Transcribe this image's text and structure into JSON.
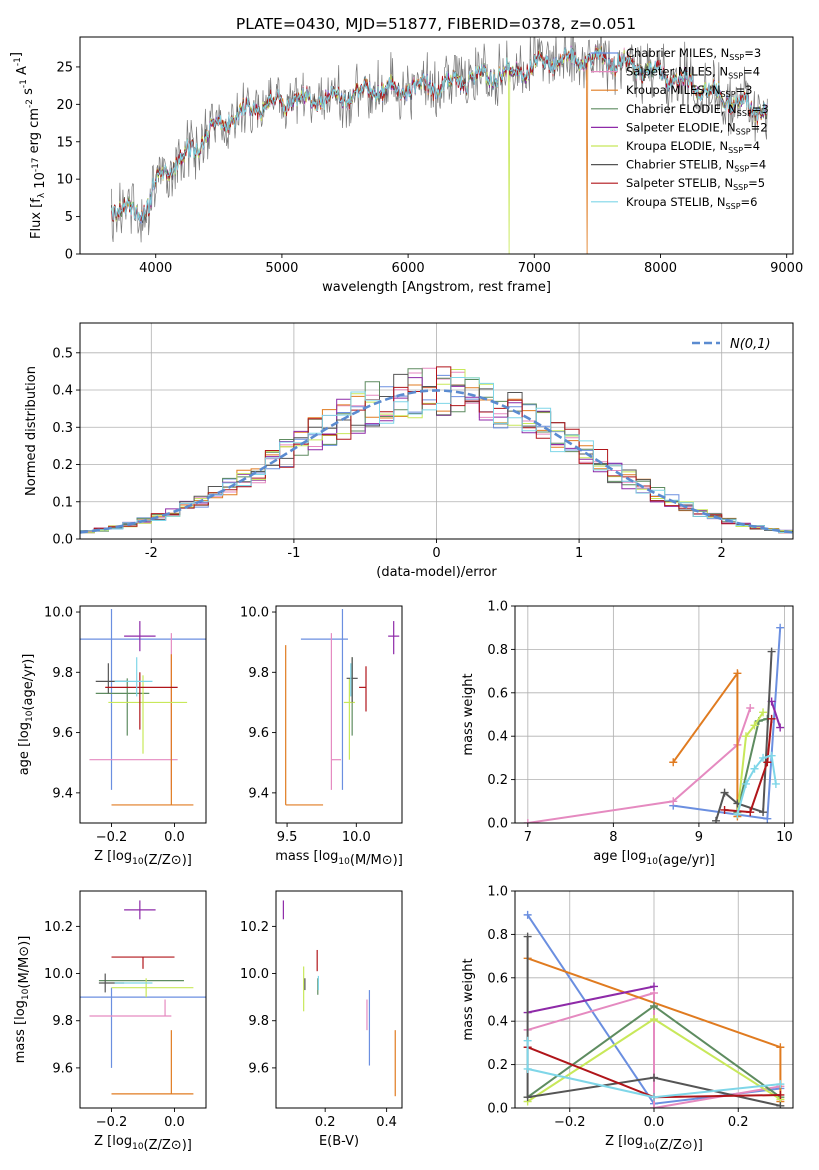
{
  "title": "PLATE=0430, MJD=51877, FIBERID=0378, z=0.051",
  "colors": {
    "Chabrier MILES": "#6b8fe0",
    "Salpeter MILES": "#e58ac0",
    "Kroupa MILES": "#e07b20",
    "Chabrier ELODIE": "#5e8c60",
    "Salpeter ELODIE": "#8e2aa8",
    "Kroupa ELODIE": "#c8e85a",
    "Chabrier STELIB": "#555555",
    "Salpeter STELIB": "#b0151a",
    "Kroupa STELIB": "#7fd6e8"
  },
  "model_order": [
    "Chabrier MILES",
    "Salpeter MILES",
    "Kroupa MILES",
    "Chabrier ELODIE",
    "Salpeter ELODIE",
    "Kroupa ELODIE",
    "Chabrier STELIB",
    "Salpeter STELIB",
    "Kroupa STELIB"
  ],
  "chart_data": [
    {
      "id": "spectrum",
      "type": "line",
      "xlabel": "wavelength [Angstrom, rest frame]",
      "ylabel": "Flux [f_λ 10^-17 erg cm^-2 s^-1 A^-1]",
      "xlim": [
        3400,
        9050
      ],
      "ylim": [
        0,
        29
      ],
      "xticks": [
        4000,
        5000,
        6000,
        7000,
        8000,
        9000
      ],
      "yticks": [
        0,
        5,
        10,
        15,
        20,
        25
      ],
      "grid": false,
      "legend": "right",
      "legend_entries": [
        {
          "base": "Chabrier MILES, N",
          "n": "3"
        },
        {
          "base": "Salpeter MILES, N",
          "n": "4"
        },
        {
          "base": "Kroupa MILES, N",
          "n": "3"
        },
        {
          "base": "Chabrier ELODIE, N",
          "n": "3"
        },
        {
          "base": "Salpeter ELODIE, N",
          "n": "2"
        },
        {
          "base": "Kroupa ELODIE, N",
          "n": "4"
        },
        {
          "base": "Chabrier STELIB, N",
          "n": "4"
        },
        {
          "base": "Salpeter STELIB, N",
          "n": "5"
        },
        {
          "base": "Kroupa STELIB, N",
          "n": "6"
        }
      ],
      "legend_sub": "SSP",
      "continuum": {
        "x": [
          3650,
          3800,
          3950,
          4000,
          4100,
          4200,
          4300,
          4400,
          4500,
          4700,
          4900,
          5100,
          5300,
          5500,
          5700,
          5900,
          6100,
          6300,
          6500,
          6700,
          6900,
          7100,
          7300,
          7500,
          7700,
          7900,
          8100,
          8300,
          8500,
          8700,
          8850
        ],
        "y": [
          6.5,
          5.5,
          6.5,
          9.5,
          11.5,
          12.5,
          14.0,
          16.0,
          17.5,
          19.0,
          20.0,
          20.5,
          20.5,
          21.0,
          22.0,
          22.0,
          22.5,
          22.5,
          23.5,
          24.0,
          24.5,
          25.5,
          26.0,
          26.0,
          25.5,
          24.5,
          23.5,
          22.5,
          21.0,
          19.5,
          19.0
        ]
      },
      "gaps": [
        [
          6800,
          0
        ],
        [
          7420,
          0
        ],
        [
          3900,
          0.5
        ]
      ]
    },
    {
      "id": "residual-hist",
      "type": "area",
      "xlabel": "(data-model)/error",
      "ylabel": "Normed distribution",
      "xlim": [
        -2.5,
        2.5
      ],
      "ylim": [
        0,
        0.58
      ],
      "xticks": [
        -2,
        -1,
        0,
        1,
        2
      ],
      "yticks": [
        0.0,
        0.1,
        0.2,
        0.3,
        0.4,
        0.5
      ],
      "grid": true,
      "legend": "top-right",
      "reference_label": "N(0,1)",
      "bin_width": 0.1
    },
    {
      "id": "age-vs-Z",
      "type": "scatter",
      "xlabel": "Z [log10(Z/Z⊙)]",
      "ylabel": "age  [log10(age/yr)]",
      "xlim": [
        -0.3,
        0.1
      ],
      "ylim": [
        9.3,
        10.02
      ],
      "xticks": [
        -0.2,
        0.0
      ],
      "yticks": [
        9.4,
        9.6,
        9.8,
        10.0
      ],
      "points": [
        {
          "model": "Chabrier MILES",
          "x": -0.2,
          "y": 9.91,
          "xerr": [
            0.1,
            0.3
          ],
          "yerr": [
            0.5,
            0.1
          ]
        },
        {
          "model": "Salpeter MILES",
          "x": -0.01,
          "y": 9.51,
          "xerr": [
            0.26,
            0.02
          ],
          "yerr": [
            0.1,
            0.42
          ]
        },
        {
          "model": "Kroupa MILES",
          "x": -0.01,
          "y": 9.36,
          "xerr": [
            0.19,
            0.07
          ],
          "yerr": [
            0.0,
            0.5
          ]
        },
        {
          "model": "Chabrier ELODIE",
          "x": -0.15,
          "y": 9.73,
          "xerr": [
            0.1,
            0.07
          ],
          "yerr": [
            0.14,
            0.05
          ]
        },
        {
          "model": "Salpeter ELODIE",
          "x": -0.11,
          "y": 9.92,
          "xerr": [
            0.05,
            0.05
          ],
          "yerr": [
            0.05,
            0.05
          ]
        },
        {
          "model": "Kroupa ELODIE",
          "x": -0.1,
          "y": 9.7,
          "xerr": [
            0.11,
            0.14
          ],
          "yerr": [
            0.17,
            0.09
          ]
        },
        {
          "model": "Chabrier STELIB",
          "x": -0.21,
          "y": 9.77,
          "xerr": [
            0.04,
            0.06
          ],
          "yerr": [
            0.04,
            0.06
          ]
        },
        {
          "model": "Salpeter STELIB",
          "x": -0.11,
          "y": 9.75,
          "xerr": [
            0.11,
            0.12
          ],
          "yerr": [
            0.14,
            0.05
          ]
        },
        {
          "model": "Kroupa STELIB",
          "x": -0.12,
          "y": 9.77,
          "xerr": [
            0.07,
            0.05
          ],
          "yerr": [
            0.05,
            0.08
          ]
        }
      ]
    },
    {
      "id": "age-vs-mass",
      "type": "scatter",
      "xlabel": "mass [log10(M/M⊙)]",
      "ylabel": "",
      "xlim": [
        9.42,
        10.33
      ],
      "ylim": [
        9.3,
        10.02
      ],
      "xticks": [
        9.5,
        10.0
      ],
      "yticks": [
        9.4,
        9.6,
        9.8,
        10.0
      ],
      "points": [
        {
          "model": "Chabrier MILES",
          "x": 9.9,
          "y": 9.91,
          "xerr": [
            0.3,
            0.04
          ],
          "yerr": [
            0.5,
            0.1
          ]
        },
        {
          "model": "Salpeter MILES",
          "x": 9.82,
          "y": 9.51,
          "xerr": [
            0.0,
            0.07
          ],
          "yerr": [
            0.1,
            0.42
          ]
        },
        {
          "model": "Kroupa MILES",
          "x": 9.49,
          "y": 9.36,
          "xerr": [
            0.0,
            0.27
          ],
          "yerr": [
            0.0,
            0.53
          ]
        },
        {
          "model": "Chabrier ELODIE",
          "x": 9.97,
          "y": 9.73,
          "xerr": [
            0.0,
            0.0
          ],
          "yerr": [
            0.14,
            0.12
          ]
        },
        {
          "model": "Salpeter ELODIE",
          "x": 10.27,
          "y": 9.92,
          "xerr": [
            0.04,
            0.04
          ],
          "yerr": [
            0.06,
            0.05
          ]
        },
        {
          "model": "Kroupa ELODIE",
          "x": 9.95,
          "y": 9.7,
          "xerr": [
            0.04,
            0.04
          ],
          "yerr": [
            0.19,
            0.08
          ]
        },
        {
          "model": "Chabrier STELIB",
          "x": 9.97,
          "y": 9.78,
          "xerr": [
            0.04,
            0.04
          ],
          "yerr": [
            0.08,
            0.07
          ]
        },
        {
          "model": "Salpeter STELIB",
          "x": 10.07,
          "y": 9.75,
          "xerr": [
            0.05,
            0.0
          ],
          "yerr": [
            0.08,
            0.07
          ]
        },
        {
          "model": "Kroupa STELIB",
          "x": 9.96,
          "y": 9.78,
          "xerr": [
            0.0,
            0.0
          ],
          "yerr": [
            0.06,
            0.05
          ]
        }
      ]
    },
    {
      "id": "massweight-vs-age",
      "type": "line",
      "xlabel": "age  [log10(age/yr)]",
      "ylabel": "mass weight",
      "xlim": [
        6.85,
        10.1
      ],
      "ylim": [
        0,
        1.0
      ],
      "xticks": [
        7,
        8,
        9,
        10
      ],
      "yticks": [
        0.0,
        0.2,
        0.4,
        0.6,
        0.8,
        1.0
      ],
      "grid": true,
      "series": [
        {
          "model": "Chabrier MILES",
          "x": [
            8.7,
            9.8,
            9.95
          ],
          "y": [
            0.08,
            0.02,
            0.9
          ]
        },
        {
          "model": "Salpeter MILES",
          "x": [
            7.0,
            8.7,
            9.45,
            9.6
          ],
          "y": [
            0.0,
            0.1,
            0.36,
            0.53
          ]
        },
        {
          "model": "Kroupa MILES",
          "x": [
            8.7,
            9.45,
            9.45
          ],
          "y": [
            0.28,
            0.69,
            0.03
          ]
        },
        {
          "model": "Chabrier ELODIE",
          "x": [
            9.45,
            9.7,
            9.8
          ],
          "y": [
            0.05,
            0.47,
            0.48
          ]
        },
        {
          "model": "Salpeter ELODIE",
          "x": [
            9.85,
            9.95
          ],
          "y": [
            0.56,
            0.44
          ]
        },
        {
          "model": "Kroupa ELODIE",
          "x": [
            9.45,
            9.55,
            9.65,
            9.75
          ],
          "y": [
            0.04,
            0.4,
            0.45,
            0.51
          ]
        },
        {
          "model": "Chabrier STELIB",
          "x": [
            9.2,
            9.3,
            9.45,
            9.75,
            9.85
          ],
          "y": [
            0.01,
            0.14,
            0.09,
            0.05,
            0.79
          ]
        },
        {
          "model": "Salpeter STELIB",
          "x": [
            9.3,
            9.6,
            9.8,
            9.85
          ],
          "y": [
            0.06,
            0.05,
            0.28,
            0.48
          ]
        },
        {
          "model": "Kroupa STELIB",
          "x": [
            9.45,
            9.55,
            9.65,
            9.75,
            9.85,
            9.9
          ],
          "y": [
            0.04,
            0.18,
            0.25,
            0.3,
            0.31,
            0.18
          ]
        }
      ]
    },
    {
      "id": "mass-vs-Z",
      "type": "scatter",
      "xlabel": "Z [log10(Z/Z⊙)]",
      "ylabel": "mass [log10(M/M⊙)]",
      "xlim": [
        -0.3,
        0.1
      ],
      "ylim": [
        9.43,
        10.35
      ],
      "xticks": [
        -0.2,
        0.0
      ],
      "yticks": [
        9.6,
        9.8,
        10.0,
        10.2
      ],
      "points": [
        {
          "model": "Chabrier MILES",
          "x": -0.2,
          "y": 9.9,
          "xerr": [
            0.1,
            0.3
          ],
          "yerr": [
            0.3,
            0.04
          ]
        },
        {
          "model": "Salpeter MILES",
          "x": -0.03,
          "y": 9.82,
          "xerr": [
            0.24,
            0.02
          ],
          "yerr": [
            0.0,
            0.07
          ]
        },
        {
          "model": "Kroupa MILES",
          "x": -0.01,
          "y": 9.49,
          "xerr": [
            0.19,
            0.07
          ],
          "yerr": [
            0.0,
            0.27
          ]
        },
        {
          "model": "Chabrier ELODIE",
          "x": -0.14,
          "y": 9.97,
          "xerr": [
            0.1,
            0.17
          ],
          "yerr": [
            0.0,
            0.0
          ]
        },
        {
          "model": "Salpeter ELODIE",
          "x": -0.11,
          "y": 10.27,
          "xerr": [
            0.05,
            0.05
          ],
          "yerr": [
            0.04,
            0.04
          ]
        },
        {
          "model": "Kroupa ELODIE",
          "x": -0.09,
          "y": 9.94,
          "xerr": [
            0.11,
            0.15
          ],
          "yerr": [
            0.04,
            0.04
          ]
        },
        {
          "model": "Chabrier STELIB",
          "x": -0.22,
          "y": 9.96,
          "xerr": [
            0.02,
            0.06
          ],
          "yerr": [
            0.04,
            0.04
          ]
        },
        {
          "model": "Salpeter STELIB",
          "x": -0.1,
          "y": 10.07,
          "xerr": [
            0.1,
            0.1
          ],
          "yerr": [
            0.05,
            0.0
          ]
        },
        {
          "model": "Kroupa STELIB",
          "x": -0.12,
          "y": 9.96,
          "xerr": [
            0.07,
            0.05
          ],
          "yerr": [
            0.0,
            0.0
          ]
        }
      ]
    },
    {
      "id": "mass-vs-ebv",
      "type": "scatter",
      "xlabel": "E(B-V)",
      "ylabel": "",
      "xlim": [
        0.04,
        0.45
      ],
      "ylim": [
        9.43,
        10.35
      ],
      "xticks": [
        0.2,
        0.4
      ],
      "yticks": [
        9.6,
        9.8,
        10.0,
        10.2
      ],
      "points": [
        {
          "model": "Chabrier MILES",
          "x": 0.344,
          "yl": 9.61,
          "yh": 9.93
        },
        {
          "model": "Salpeter MILES",
          "x": 0.336,
          "yl": 9.76,
          "yh": 9.89
        },
        {
          "model": "Kroupa MILES",
          "x": 0.428,
          "yl": 9.48,
          "yh": 9.76
        },
        {
          "model": "Chabrier ELODIE",
          "x": 0.176,
          "yl": 9.91,
          "yh": 9.98
        },
        {
          "model": "Salpeter ELODIE",
          "x": 0.064,
          "yl": 10.23,
          "yh": 10.31
        },
        {
          "model": "Kroupa ELODIE",
          "x": 0.13,
          "yl": 9.84,
          "yh": 10.03
        },
        {
          "model": "Chabrier STELIB",
          "x": 0.134,
          "yl": 9.93,
          "yh": 9.98
        },
        {
          "model": "Salpeter STELIB",
          "x": 0.174,
          "yl": 10.01,
          "yh": 10.1
        },
        {
          "model": "Kroupa STELIB",
          "x": 0.178,
          "yl": 9.93,
          "yh": 9.99
        }
      ]
    },
    {
      "id": "massweight-vs-Z",
      "type": "line",
      "xlabel": "Z [log10(Z/Z⊙)]",
      "ylabel": "mass weight",
      "xlim": [
        -0.33,
        0.33
      ],
      "ylim": [
        0,
        1.0
      ],
      "xticks": [
        -0.2,
        0.0,
        0.2
      ],
      "yticks": [
        0.0,
        0.2,
        0.4,
        0.6,
        0.8,
        1.0
      ],
      "grid": true,
      "series": [
        {
          "model": "Chabrier MILES",
          "x": [
            -0.3,
            0.0,
            0.3
          ],
          "y": [
            0.89,
            0.02,
            0.09
          ]
        },
        {
          "model": "Salpeter MILES",
          "x": [
            -0.3,
            0.0,
            0.0,
            0.3
          ],
          "y": [
            0.36,
            0.53,
            0.0,
            0.1
          ]
        },
        {
          "model": "Kroupa MILES",
          "x": [
            -0.3,
            0.3,
            0.3
          ],
          "y": [
            0.69,
            0.28,
            0.03
          ]
        },
        {
          "model": "Chabrier ELODIE",
          "x": [
            -0.3,
            0.0,
            0.3
          ],
          "y": [
            0.05,
            0.47,
            0.05
          ]
        },
        {
          "model": "Salpeter ELODIE",
          "x": [
            -0.3,
            0.0
          ],
          "y": [
            0.44,
            0.56
          ]
        },
        {
          "model": "Kroupa ELODIE",
          "x": [
            -0.3,
            0.0,
            0.3
          ],
          "y": [
            0.03,
            0.41,
            0.04
          ]
        },
        {
          "model": "Chabrier STELIB",
          "x": [
            -0.3,
            -0.3,
            0.0,
            0.3
          ],
          "y": [
            0.79,
            0.05,
            0.14,
            0.01
          ]
        },
        {
          "model": "Salpeter STELIB",
          "x": [
            -0.3,
            0.0,
            0.3
          ],
          "y": [
            0.28,
            0.05,
            0.06
          ]
        },
        {
          "model": "Kroupa STELIB",
          "x": [
            -0.3,
            -0.3,
            0.0,
            0.3
          ],
          "y": [
            0.31,
            0.18,
            0.05,
            0.11
          ]
        }
      ]
    }
  ]
}
